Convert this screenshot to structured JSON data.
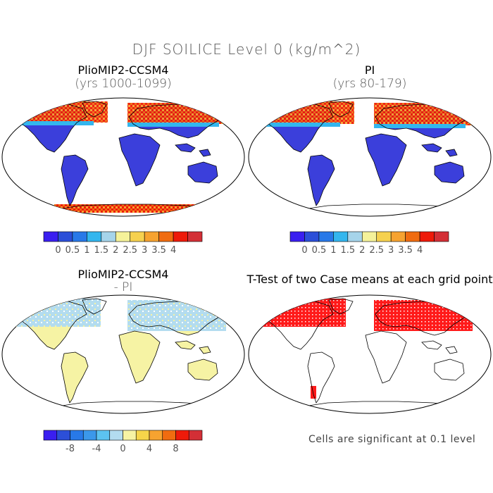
{
  "figure": {
    "title": "DJF SOILICE Level 0 (kg/m^2)"
  },
  "panels": [
    {
      "title": "PlioMIP2-CCSM4",
      "subtitle": "(yrs 1000-1099)"
    },
    {
      "title": "PI",
      "subtitle": "(yrs 80-179)"
    },
    {
      "title": "PlioMIP2-CCSM4",
      "subtitle": "- PI"
    },
    {
      "title": "T-Test of two Case means at each grid point",
      "subtitle": ""
    }
  ],
  "colorbars": {
    "abs": {
      "colors": [
        "#3a1ff0",
        "#2c4fd8",
        "#2879e8",
        "#33b6ee",
        "#a6d4ea",
        "#f5f29a",
        "#f6d14f",
        "#f6a330",
        "#f06c10",
        "#ee1a0a",
        "#d32f36"
      ],
      "labels": [
        "0",
        "0.5",
        "1",
        "1.5",
        "2",
        "2.5",
        "3",
        "3.5",
        "4"
      ]
    },
    "diff": {
      "colors": [
        "#3a1ff0",
        "#2c4fd8",
        "#2879e8",
        "#3b98ea",
        "#5cc3f0",
        "#b3dcef",
        "#f6f3a4",
        "#f6d54a",
        "#f6a330",
        "#f06c10",
        "#ee1a0a",
        "#d32f36"
      ],
      "labels": [
        "-8",
        "-4",
        "0",
        "4",
        "8"
      ]
    }
  },
  "note": "Cells are significant at 0.1 level"
}
